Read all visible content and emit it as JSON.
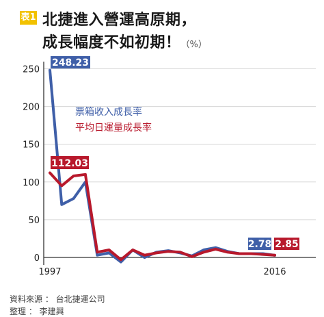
{
  "title": {
    "tag": "表1",
    "line1": "北捷進入營運高原期，",
    "line2": "成長幅度不如初期！",
    "unit": "（%）"
  },
  "source": {
    "line1": "資料來源 ： 台北捷運公司",
    "line2": "整理 ： 李建興"
  },
  "colors": {
    "blue": "#3f5fa8",
    "red": "#b8192c",
    "axis": "#333333",
    "grid": "#d6d6d6",
    "tag": "#f2c200"
  },
  "chart_data": {
    "type": "line",
    "x": [
      1997,
      1998,
      1999,
      2000,
      2001,
      2002,
      2003,
      2004,
      2005,
      2006,
      2007,
      2008,
      2009,
      2010,
      2011,
      2012,
      2013,
      2014,
      2015,
      2016
    ],
    "series": [
      {
        "name": "票箱收入成長率",
        "color": "#3f5fa8",
        "values": [
          248.23,
          70,
          78,
          100,
          3,
          6,
          -6,
          10,
          0,
          7,
          9,
          6,
          2,
          10,
          13,
          8,
          5,
          5,
          5,
          2.78
        ]
      },
      {
        "name": "平均日運量成長率",
        "color": "#b8192c",
        "values": [
          112.03,
          95,
          108,
          110,
          7,
          10,
          -3,
          10,
          3,
          6,
          8,
          7,
          1,
          7,
          11,
          7,
          5,
          5,
          4,
          2.85
        ]
      }
    ],
    "xtick_labels": [
      "1997",
      "2016"
    ],
    "yticks": [
      0,
      50,
      100,
      150,
      200,
      250
    ],
    "ylim": [
      -10,
      255
    ],
    "grid": true,
    "legend_position": "upper-middle",
    "data_labels": [
      {
        "series": 0,
        "index": 0,
        "text": "248.23"
      },
      {
        "series": 1,
        "index": 0,
        "text": "112.03"
      },
      {
        "series": 0,
        "index": 19,
        "text": "2.78"
      },
      {
        "series": 1,
        "index": 19,
        "text": "2.85"
      }
    ]
  }
}
